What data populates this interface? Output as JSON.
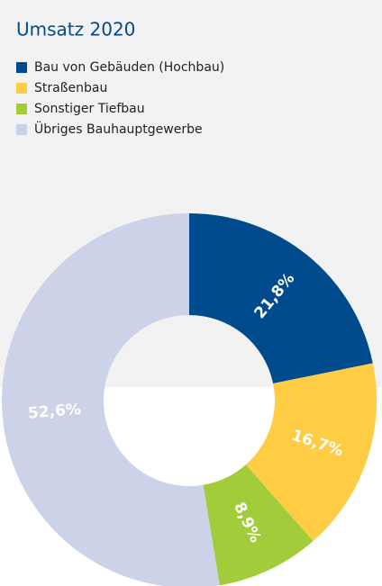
{
  "chart_data": {
    "type": "donut",
    "title": "Umsatz 2020",
    "categories": [
      "Bau von Gebäuden (Hochbau)",
      "Straßenbau",
      "Sonstiger Tiefbau",
      "Übriges Bauhauptgewerbe"
    ],
    "values": [
      21.8,
      16.7,
      8.9,
      52.6
    ],
    "value_labels": [
      "21,8%",
      "16,7%",
      "8,9%",
      "52,6%"
    ],
    "colors": [
      "#004b8d",
      "#ffcc44",
      "#a3cc3a",
      "#ccd3e8"
    ]
  }
}
